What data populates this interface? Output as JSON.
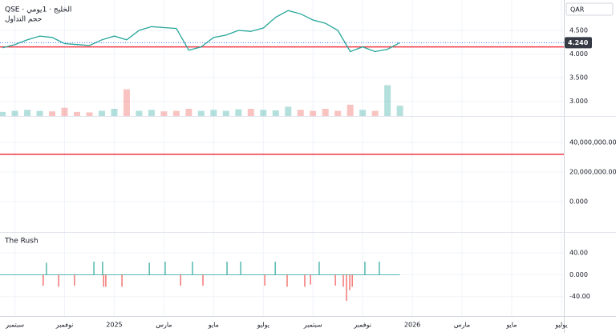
{
  "x_axis": {
    "xlim": [
      -0.6,
      22.1
    ],
    "xticks": [
      {
        "value": 0,
        "label": "سبتمبر"
      },
      {
        "value": 2,
        "label": "نوفمبر"
      },
      {
        "value": 4,
        "label": "2025"
      },
      {
        "value": 6,
        "label": "مارس"
      },
      {
        "value": 8,
        "label": "مايو"
      },
      {
        "value": 10,
        "label": "يوليو"
      },
      {
        "value": 12,
        "label": "سبتمبر"
      },
      {
        "value": 14,
        "label": "نوفمبر"
      },
      {
        "value": 16,
        "label": "2026"
      },
      {
        "value": 18,
        "label": "مارس"
      },
      {
        "value": 20,
        "label": "مايو"
      },
      {
        "value": 22,
        "label": "يوليو"
      }
    ]
  },
  "chart_data": [
    {
      "type": "line",
      "title": "QSE · الخليج · 1يومي",
      "subtitle": "حجم التداول",
      "currency": "QAR",
      "x": [
        -0.5,
        0,
        0.5,
        1,
        1.5,
        2,
        2.5,
        3,
        3.5,
        4,
        4.5,
        5,
        5.5,
        6,
        6.5,
        7,
        7.5,
        8,
        8.5,
        9,
        9.5,
        10,
        10.5,
        11,
        11.5,
        12,
        12.5,
        13,
        13.5,
        14,
        14.5,
        15,
        15.5
      ],
      "values": [
        4.13,
        4.2,
        4.3,
        4.38,
        4.35,
        4.22,
        4.2,
        4.18,
        4.3,
        4.38,
        4.3,
        4.5,
        4.58,
        4.56,
        4.54,
        4.08,
        4.15,
        4.35,
        4.4,
        4.5,
        4.48,
        4.55,
        4.78,
        4.92,
        4.85,
        4.72,
        4.65,
        4.5,
        4.05,
        4.15,
        4.05,
        4.1,
        4.24
      ],
      "color": "#26a69a",
      "volume": [
        4000000,
        5000000,
        6000000,
        5000000,
        4500000,
        8000000,
        4000000,
        3500000,
        5000000,
        7000000,
        26000000,
        5000000,
        6000000,
        4500000,
        5000000,
        7000000,
        5000000,
        6000000,
        5000000,
        6500000,
        7000000,
        6000000,
        5500000,
        9000000,
        6000000,
        5000000,
        7000000,
        5000000,
        11000000,
        6000000,
        5000000,
        30000000,
        10000000
      ],
      "volume_ylim": [
        0,
        35000000
      ],
      "up_color": "#26a69a",
      "down_color": "#ef5350",
      "ylim": [
        2.686,
        5.144
      ],
      "yticks": [
        {
          "value": 3,
          "label": "3.000"
        },
        {
          "value": 3.5,
          "label": "3.500"
        },
        {
          "value": 4,
          "label": "4.000"
        },
        {
          "value": 4.5,
          "label": "4.500"
        }
      ],
      "hline": {
        "value": 4.15,
        "color": "#f23645"
      },
      "last_price": {
        "value": 4.24,
        "label": "4.240"
      }
    },
    {
      "type": "empty",
      "ylim": [
        -20500000,
        57300000
      ],
      "yticks": [
        {
          "value": 0,
          "label": "0.000"
        },
        {
          "value": 20000000,
          "label": "20,000,000.00"
        },
        {
          "value": 40000000,
          "label": "40,000,000.00"
        }
      ],
      "hline": {
        "value": 32000000,
        "color": "#f23645"
      }
    },
    {
      "type": "bar",
      "title": "The Rush",
      "x": [
        1.14,
        1.27,
        1.76,
        2.4,
        3.18,
        3.53,
        3.57,
        3.66,
        4.31,
        5.41,
        6.05,
        6.67,
        7.15,
        7.57,
        8.54,
        9.09,
        10.06,
        10.48,
        10.96,
        11.67,
        11.9,
        12.25,
        12.9,
        13.22,
        13.35,
        13.48,
        13.58,
        14.09,
        14.67
      ],
      "values": [
        -20,
        22,
        -22,
        -20,
        24,
        24,
        -22,
        -22,
        -22,
        22,
        24,
        -20,
        24,
        -20,
        24,
        24,
        -20,
        24,
        -22,
        -22,
        -18,
        24,
        -20,
        -22,
        -48,
        -28,
        -22,
        24,
        24
      ],
      "up_color": "#26a69a",
      "down_color": "#ef5350",
      "ylim": [
        -75.6,
        77
      ],
      "yticks": [
        {
          "value": -40,
          "label": "-40.00"
        },
        {
          "value": 0,
          "label": "0.000"
        },
        {
          "value": 40,
          "label": "40.00"
        }
      ]
    }
  ]
}
